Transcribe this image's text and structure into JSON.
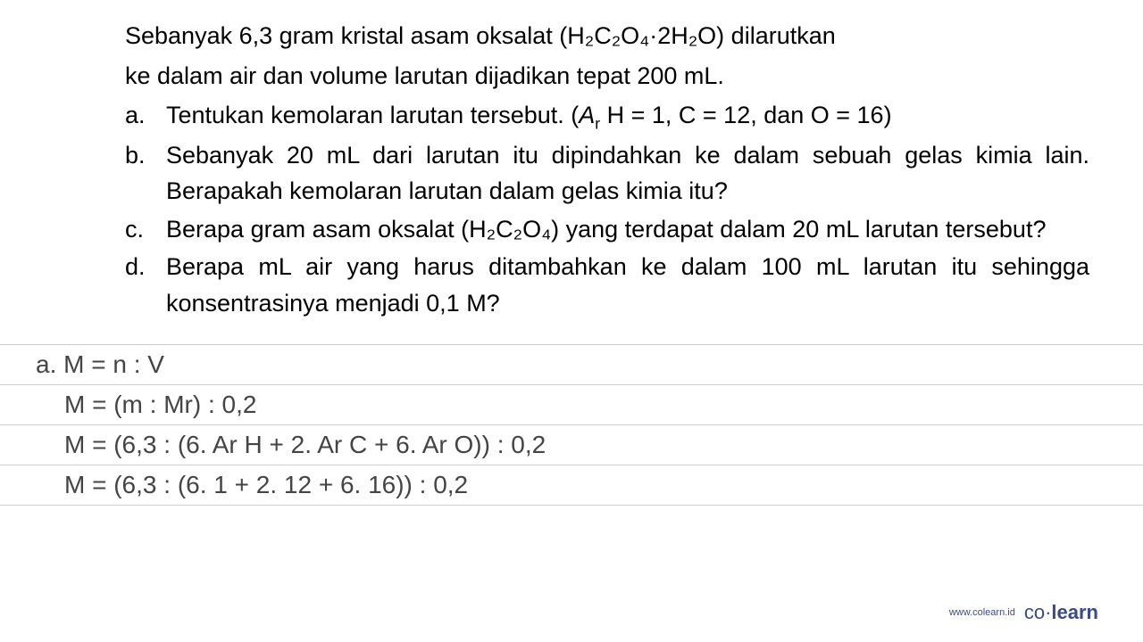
{
  "question": {
    "intro_line1": "Sebanyak 6,3 gram kristal asam oksalat (H₂C₂O₄·2H₂O) dilarutkan",
    "intro_line2": "ke dalam air dan volume larutan dijadikan tepat 200 mL.",
    "items": [
      {
        "letter": "a.",
        "text_html": "Tentukan kemolaran larutan tersebut. (<span class=\"italic\">A</span><span class=\"sub-r\">r</span> H = 1, C = 12, dan O = 16)"
      },
      {
        "letter": "b.",
        "text_html": "Sebanyak 20 mL dari larutan itu dipindahkan ke dalam sebuah gelas kimia lain. Berapakah kemolaran larutan dalam gelas kimia itu?"
      },
      {
        "letter": "c.",
        "text_html": "Berapa gram asam oksalat (H₂C₂O₄) yang terdapat dalam 20 mL larutan tersebut?"
      },
      {
        "letter": "d.",
        "text_html": "Berapa mL air yang harus ditambahkan ke dalam 100 mL larutan itu sehingga konsentrasinya menjadi 0,1 M?"
      }
    ]
  },
  "answer": {
    "lines": [
      {
        "text": "a. M = n : V",
        "indent": false
      },
      {
        "text": "M = (m : Mr) : 0,2",
        "indent": true
      },
      {
        "text": "M = (6,3 : (6. Ar H + 2. Ar C + 6. Ar O)) : 0,2",
        "indent": true
      },
      {
        "text": "M = (6,3 : (6. 1 + 2. 12 + 6. 16)) : 0,2",
        "indent": true
      }
    ]
  },
  "footer": {
    "url": "www.colearn.id",
    "logo_co": "co",
    "logo_dot": "·",
    "logo_learn": "learn"
  },
  "colors": {
    "background": "#ffffff",
    "question_text": "#000000",
    "answer_text": "#444444",
    "divider": "#cccccc",
    "brand": "#3a4a8a"
  },
  "typography": {
    "question_fontsize": 27,
    "answer_fontsize": 28,
    "footer_url_fontsize": 11,
    "footer_logo_fontsize": 22
  }
}
